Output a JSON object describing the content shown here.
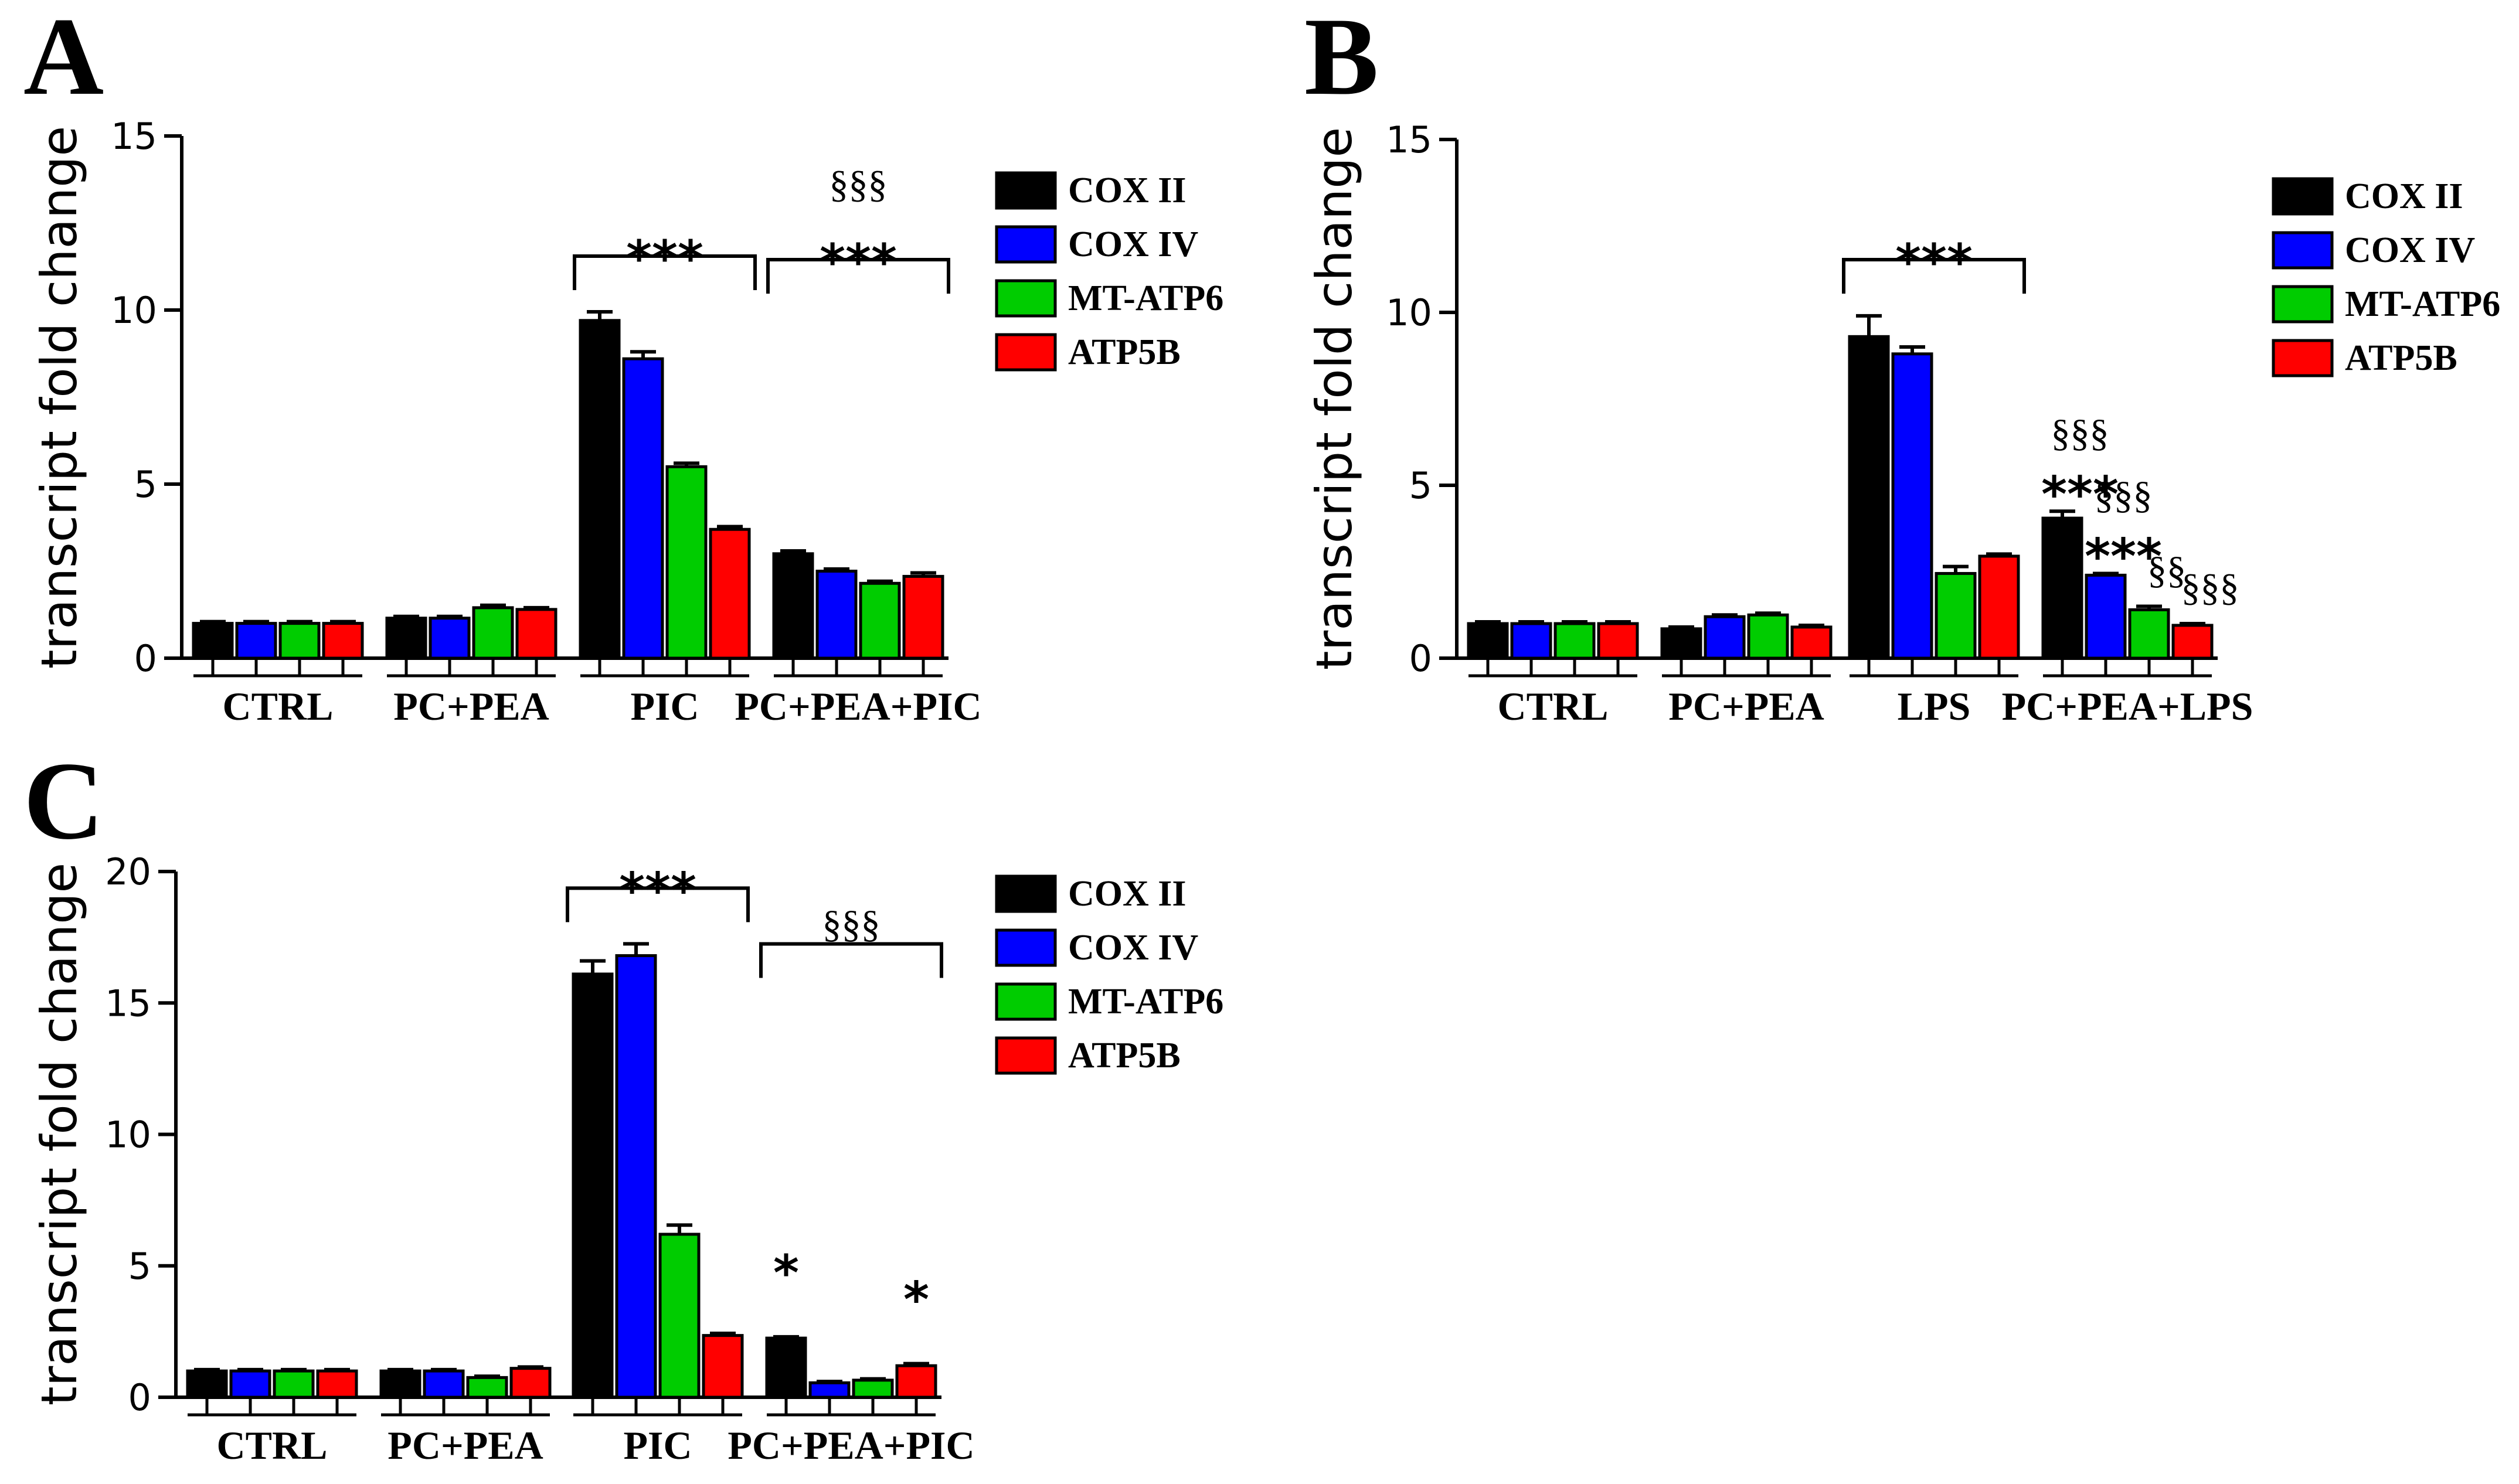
{
  "colors": {
    "COX II": "#000000",
    "COX IV": "#0000ff",
    "MT-ATP6": "#00cc00",
    "ATP5B": "#ff0000"
  },
  "chart_data": [
    {
      "panel": "A",
      "type": "bar",
      "ylabel": "transcript fold change",
      "ylim": [
        0,
        15
      ],
      "yticks": [
        0,
        5,
        10,
        15
      ],
      "categories": [
        "CTRL",
        "PC+PEA",
        "PIC",
        "PC+PEA+PIC"
      ],
      "legend": [
        "COX II",
        "COX IV",
        "MT-ATP6",
        "ATP5B"
      ],
      "series": [
        {
          "name": "COX II",
          "values": [
            1.0,
            1.15,
            9.7,
            3.0
          ],
          "errors": [
            0.05,
            0.05,
            0.25,
            0.08
          ]
        },
        {
          "name": "COX IV",
          "values": [
            1.0,
            1.15,
            8.6,
            2.5
          ],
          "errors": [
            0.05,
            0.05,
            0.2,
            0.06
          ]
        },
        {
          "name": "MT-ATP6",
          "values": [
            1.0,
            1.45,
            5.5,
            2.15
          ],
          "errors": [
            0.05,
            0.07,
            0.1,
            0.06
          ]
        },
        {
          "name": "ATP5B",
          "values": [
            1.0,
            1.4,
            3.7,
            2.35
          ],
          "errors": [
            0.05,
            0.05,
            0.08,
            0.1
          ]
        }
      ],
      "annotations": [
        {
          "category": "PIC",
          "marks": [
            "***"
          ],
          "bracket": true
        },
        {
          "category": "PC+PEA+PIC",
          "marks": [
            "§§§",
            "***"
          ],
          "bracket": true
        }
      ]
    },
    {
      "panel": "B",
      "type": "bar",
      "ylabel": "transcript fold change",
      "ylim": [
        0,
        15
      ],
      "yticks": [
        0,
        5,
        10,
        15
      ],
      "categories": [
        "CTRL",
        "PC+PEA",
        "LPS",
        "PC+PEA+LPS"
      ],
      "legend": [
        "COX II",
        "COX IV",
        "MT-ATP6",
        "ATP5B"
      ],
      "series": [
        {
          "name": "COX II",
          "values": [
            1.0,
            0.85,
            9.3,
            4.05
          ],
          "errors": [
            0.05,
            0.05,
            0.6,
            0.2
          ]
        },
        {
          "name": "COX IV",
          "values": [
            1.0,
            1.2,
            8.8,
            2.4
          ],
          "errors": [
            0.05,
            0.05,
            0.2,
            0.05
          ]
        },
        {
          "name": "MT-ATP6",
          "values": [
            1.0,
            1.25,
            2.45,
            1.4
          ],
          "errors": [
            0.05,
            0.05,
            0.2,
            0.1
          ]
        },
        {
          "name": "ATP5B",
          "values": [
            1.0,
            0.9,
            2.95,
            0.95
          ],
          "errors": [
            0.05,
            0.05,
            0.06,
            0.05
          ]
        }
      ],
      "annotations": [
        {
          "category": "LPS",
          "marks": [
            "***"
          ],
          "bracket": true
        },
        {
          "category": "PC+PEA+LPS",
          "series": "COX II",
          "marks": [
            "§§§",
            "***"
          ]
        },
        {
          "category": "PC+PEA+LPS",
          "series": "COX IV",
          "marks": [
            "§§§",
            "***"
          ]
        },
        {
          "category": "PC+PEA+LPS",
          "series": "MT-ATP6",
          "marks": [
            "§§"
          ]
        },
        {
          "category": "PC+PEA+LPS",
          "series": "ATP5B",
          "marks": [
            "§§§"
          ]
        }
      ]
    },
    {
      "panel": "C",
      "type": "bar",
      "ylabel": "transcript fold change",
      "ylim": [
        0,
        20
      ],
      "yticks": [
        0,
        5,
        10,
        15,
        20
      ],
      "categories": [
        "CTRL",
        "PC+PEA",
        "PIC",
        "PC+PEA+PIC"
      ],
      "legend": [
        "COX II",
        "COX IV",
        "MT-ATP6",
        "ATP5B"
      ],
      "series": [
        {
          "name": "COX II",
          "values": [
            1.0,
            1.0,
            16.1,
            2.25
          ],
          "errors": [
            0.05,
            0.05,
            0.5,
            0.05
          ]
        },
        {
          "name": "COX IV",
          "values": [
            1.0,
            1.0,
            16.8,
            0.55
          ],
          "errors": [
            0.05,
            0.05,
            0.45,
            0.05
          ]
        },
        {
          "name": "MT-ATP6",
          "values": [
            1.0,
            0.75,
            6.2,
            0.65
          ],
          "errors": [
            0.05,
            0.05,
            0.35,
            0.05
          ]
        },
        {
          "name": "ATP5B",
          "values": [
            1.0,
            1.1,
            2.35,
            1.2
          ],
          "errors": [
            0.05,
            0.05,
            0.08,
            0.08
          ]
        }
      ],
      "annotations": [
        {
          "category": "PIC",
          "marks": [
            "***"
          ],
          "bracket": true
        },
        {
          "category": "PC+PEA+PIC",
          "marks": [
            "§§§"
          ],
          "bracket": true
        },
        {
          "category": "PC+PEA+PIC",
          "series": "COX II",
          "marks": [
            "*"
          ]
        },
        {
          "category": "PC+PEA+PIC",
          "series": "ATP5B",
          "marks": [
            "*"
          ]
        }
      ]
    }
  ]
}
